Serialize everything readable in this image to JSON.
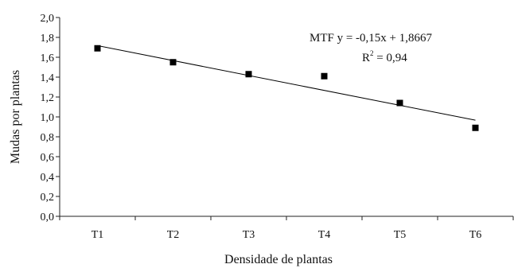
{
  "chart_data": {
    "type": "scatter",
    "xlabel": "Densidade de plantas",
    "ylabel": "Mudas por plantas",
    "categories": [
      "T1",
      "T2",
      "T3",
      "T4",
      "T5",
      "T6"
    ],
    "ylim": [
      0,
      2.0
    ],
    "yticks": [
      "0,0",
      "0,2",
      "0,4",
      "0,6",
      "0,8",
      "1,0",
      "1,2",
      "1,4",
      "1,6",
      "1,8",
      "2,0"
    ],
    "series": [
      {
        "name": "MTF",
        "values": [
          1.69,
          1.55,
          1.43,
          1.41,
          1.14,
          0.89
        ]
      }
    ],
    "trendline": {
      "type": "linear",
      "slope": -0.15,
      "intercept": 1.8667
    },
    "annotations": {
      "equation_prefix": "MTF y = -0,15x + 1,8667",
      "r2_prefix": "R",
      "r2_superscript": "2",
      "r2_suffix": " = 0,94"
    },
    "grid": false,
    "legend": "none"
  }
}
